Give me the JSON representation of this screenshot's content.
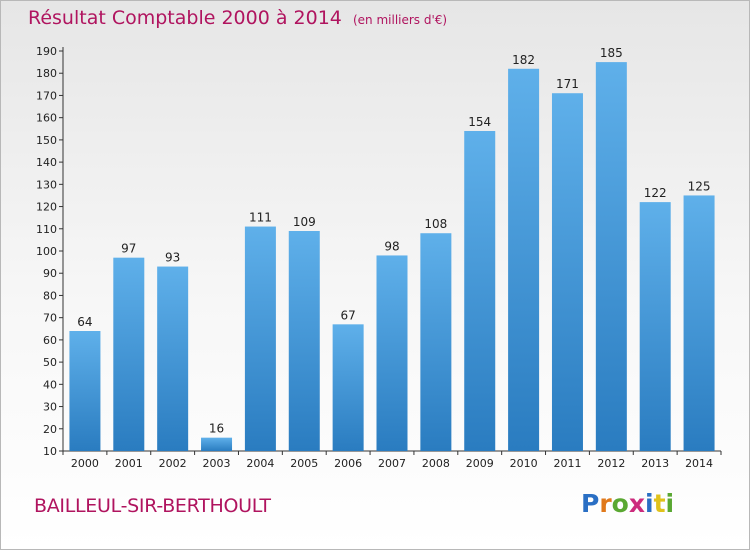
{
  "header": {
    "title": "Résultat Comptable 2000 à 2014",
    "unit": "(en milliers d'€)"
  },
  "footer": {
    "commune": "BAILLEUL-SIR-BERTHOULT",
    "logo_text": "Proxiti",
    "logo_colors": [
      "#2a6fc4",
      "#e0791b",
      "#5aa832",
      "#cc2b7d",
      "#2a6fc4",
      "#e0c21b",
      "#5aa832"
    ]
  },
  "colors": {
    "title": "#b0145f",
    "bar_light": "#5fb0ea",
    "bar_dark": "#2a7cc0",
    "axis": "#333333"
  },
  "chart_data": {
    "type": "bar",
    "categories": [
      "2000",
      "2001",
      "2002",
      "2003",
      "2004",
      "2005",
      "2006",
      "2007",
      "2008",
      "2009",
      "2010",
      "2011",
      "2012",
      "2013",
      "2014"
    ],
    "values": [
      64,
      97,
      93,
      16,
      111,
      109,
      67,
      98,
      108,
      154,
      182,
      171,
      185,
      122,
      125
    ],
    "yticks": [
      10,
      20,
      30,
      40,
      50,
      60,
      70,
      80,
      90,
      100,
      110,
      120,
      130,
      140,
      150,
      160,
      170,
      180,
      190
    ],
    "ylim": [
      10,
      190
    ],
    "grid": false,
    "data_labels": true
  }
}
